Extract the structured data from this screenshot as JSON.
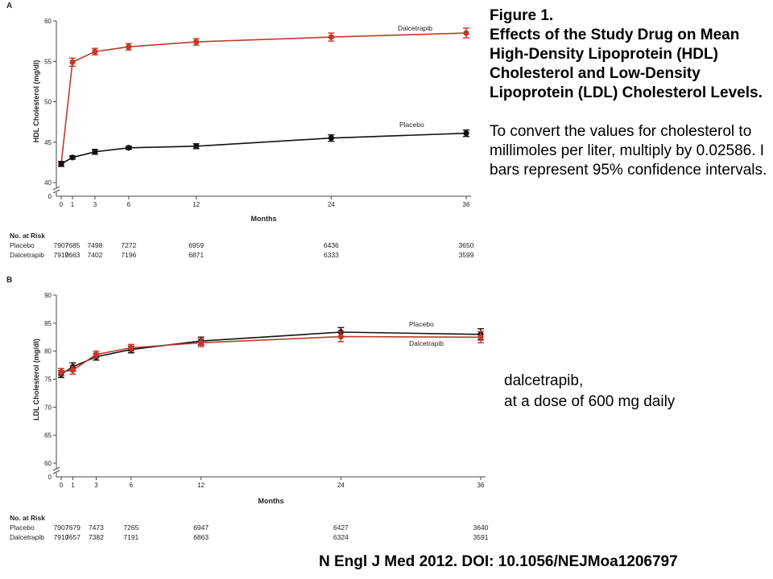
{
  "caption": {
    "title": "Figure 1.",
    "body": "Effects of the Study Drug on Mean High-Density Lipoprotein (HDL) Cholesterol and Low-Density Lipoprotein (LDL) Cholesterol Levels.",
    "note": "To convert the values for cholesterol to millimoles per liter, multiply by 0.02586. I bars represent 95% confidence intervals."
  },
  "dose_note": [
    "dalcetrapib,",
    "at a dose of 600 mg daily"
  ],
  "citation": "N Engl J Med 2012. DOI: 10.1056/NEJMoa1206797",
  "colors": {
    "placebo": "#111111",
    "dalcetrapib": "#c0392b",
    "axis": "#444444"
  },
  "chart_data": [
    {
      "type": "line",
      "panel": "A",
      "xlabel": "Months",
      "ylabel": "HDL Cholesterol (mg/dl)",
      "x_ticks": [
        0,
        1,
        3,
        6,
        12,
        24,
        36
      ],
      "y_ticks": [
        40,
        45,
        50,
        55,
        60
      ],
      "ylim": [
        40,
        60
      ],
      "axis_break": true,
      "series": [
        {
          "name": "Dalcetrapib",
          "color": "#c0392b",
          "x": [
            0,
            1,
            3,
            6,
            12,
            24,
            36
          ],
          "values": [
            42.3,
            54.9,
            56.2,
            56.8,
            57.4,
            58.0,
            58.5
          ],
          "ci": [
            0.3,
            0.5,
            0.4,
            0.4,
            0.4,
            0.5,
            0.6
          ]
        },
        {
          "name": "Placebo",
          "color": "#111111",
          "x": [
            0,
            1,
            3,
            6,
            12,
            24,
            36
          ],
          "values": [
            42.3,
            43.1,
            43.8,
            44.3,
            44.5,
            45.5,
            46.1
          ],
          "ci": [
            0.3,
            0.2,
            0.3,
            0.2,
            0.3,
            0.4,
            0.4
          ]
        }
      ],
      "risk_table": {
        "title": "No. at Risk",
        "rows": [
          {
            "label": "Placebo",
            "values": [
              "7907",
              "7685",
              "7498",
              "7272",
              "6959",
              "6436",
              "3650"
            ]
          },
          {
            "label": "Dalcetrapib",
            "values": [
              "7910",
              "7663",
              "7402",
              "7196",
              "6871",
              "6333",
              "3599"
            ]
          }
        ]
      }
    },
    {
      "type": "line",
      "panel": "B",
      "xlabel": "Months",
      "ylabel": "LDL Cholesterol (mg/dl)",
      "x_ticks": [
        0,
        1,
        3,
        6,
        12,
        24,
        36
      ],
      "y_ticks": [
        60,
        65,
        70,
        75,
        80,
        85,
        90
      ],
      "ylim": [
        60,
        90
      ],
      "axis_break": true,
      "series": [
        {
          "name": "Placebo",
          "color": "#111111",
          "x": [
            0,
            1,
            3,
            6,
            12,
            24,
            36
          ],
          "values": [
            75.9,
            77.2,
            79.0,
            80.3,
            81.8,
            83.4,
            83.0
          ],
          "ci": [
            0.6,
            0.7,
            0.6,
            0.6,
            0.7,
            0.8,
            1.0
          ]
        },
        {
          "name": "Dalcetrapib",
          "color": "#c0392b",
          "x": [
            0,
            1,
            3,
            6,
            12,
            24,
            36
          ],
          "values": [
            76.3,
            76.6,
            79.4,
            80.6,
            81.5,
            82.6,
            82.5
          ],
          "ci": [
            0.6,
            0.7,
            0.6,
            0.6,
            0.7,
            0.9,
            1.0
          ]
        }
      ],
      "risk_table": {
        "title": "No. at Risk",
        "rows": [
          {
            "label": "Placebo",
            "values": [
              "7907",
              "7679",
              "7473",
              "7265",
              "6947",
              "6427",
              "3640"
            ]
          },
          {
            "label": "Dalcetrapib",
            "values": [
              "7910",
              "7657",
              "7382",
              "7191",
              "6863",
              "6324",
              "3591"
            ]
          }
        ]
      }
    }
  ]
}
